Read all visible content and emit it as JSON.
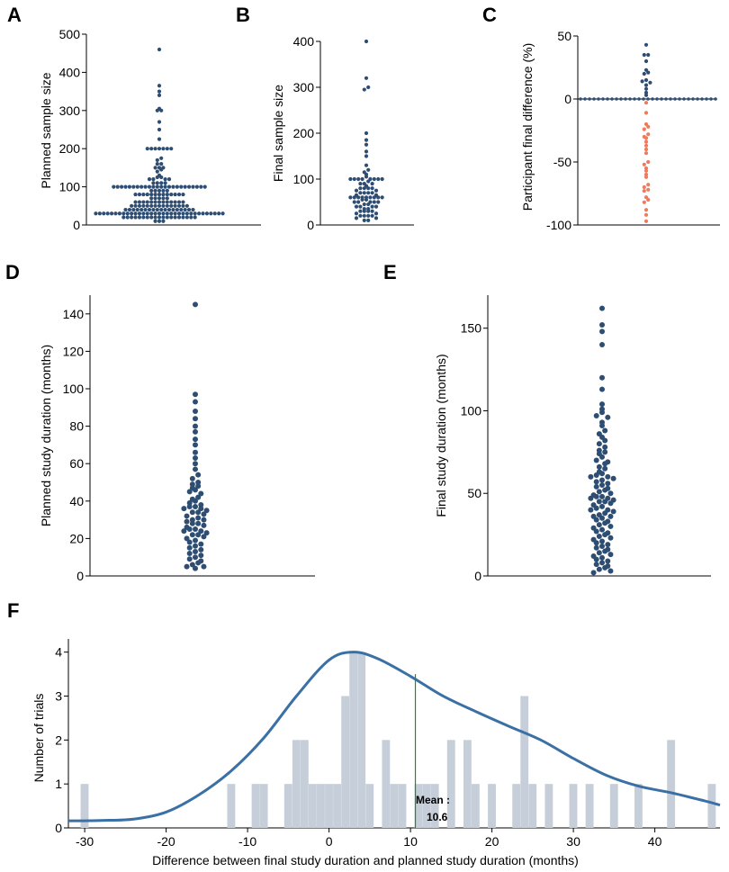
{
  "colors": {
    "dot": "#2e4d72",
    "neg_dot": "#f07a5c",
    "bar": "#c6cfd9",
    "curve": "#3a70a4",
    "mean_line": "#1e8f1e",
    "axis": "#000000"
  },
  "chart_data": [
    {
      "panel": "A",
      "type": "scatter",
      "ylabel": "Planned sample size",
      "ylim": [
        0,
        500
      ],
      "yticks": [
        0,
        100,
        200,
        300,
        400,
        500
      ],
      "values": [
        460,
        365,
        350,
        340,
        305,
        300,
        300,
        270,
        250,
        225,
        200,
        200,
        200,
        200,
        200,
        200,
        200,
        175,
        170,
        160,
        160,
        150,
        150,
        150,
        145,
        140,
        130,
        125,
        125,
        120,
        120,
        120,
        120,
        110,
        110,
        110,
        110,
        100,
        100,
        100,
        100,
        100,
        100,
        100,
        100,
        100,
        100,
        100,
        100,
        100,
        100,
        100,
        100,
        100,
        100,
        100,
        100,
        100,
        100,
        100,
        100,
        90,
        90,
        90,
        90,
        90,
        80,
        80,
        80,
        80,
        80,
        80,
        80,
        80,
        80,
        80,
        80,
        80,
        80,
        70,
        70,
        70,
        70,
        70,
        60,
        60,
        60,
        60,
        60,
        60,
        60,
        60,
        60,
        60,
        60,
        60,
        60,
        50,
        50,
        50,
        50,
        50,
        50,
        50,
        50,
        50,
        50,
        50,
        50,
        50,
        50,
        50,
        40,
        40,
        40,
        40,
        40,
        40,
        40,
        40,
        40,
        40,
        40,
        40,
        40,
        40,
        40,
        40,
        40,
        40,
        30,
        30,
        30,
        30,
        30,
        30,
        30,
        30,
        30,
        30,
        30,
        30,
        30,
        30,
        30,
        30,
        30,
        30,
        30,
        30,
        30,
        30,
        30,
        30,
        30,
        30,
        30,
        30,
        30,
        30,
        30,
        30,
        30,
        20,
        20,
        20,
        20,
        20,
        20,
        20,
        20,
        20,
        20,
        20,
        20,
        20,
        20,
        20,
        20,
        20,
        20,
        20,
        10,
        10,
        10
      ]
    },
    {
      "panel": "B",
      "type": "scatter",
      "ylabel": "Final sample size",
      "ylim": [
        0,
        400
      ],
      "yticks": [
        0,
        100,
        200,
        300,
        400
      ],
      "values": [
        400,
        320,
        300,
        295,
        200,
        185,
        175,
        160,
        150,
        130,
        120,
        115,
        110,
        105,
        100,
        100,
        100,
        100,
        100,
        100,
        100,
        100,
        95,
        90,
        90,
        90,
        85,
        80,
        80,
        80,
        80,
        75,
        75,
        70,
        70,
        70,
        70,
        65,
        65,
        60,
        60,
        60,
        60,
        60,
        60,
        60,
        60,
        60,
        55,
        55,
        50,
        50,
        50,
        50,
        50,
        45,
        45,
        40,
        40,
        40,
        40,
        35,
        35,
        30,
        30,
        30,
        30,
        25,
        25,
        20,
        20,
        20,
        20,
        15,
        15,
        10,
        10
      ]
    },
    {
      "panel": "C",
      "type": "scatter",
      "ylabel": "Participant final difference (%)",
      "ylim": [
        -100,
        50
      ],
      "yticks": [
        -100,
        -50,
        0,
        50
      ],
      "zero_row_count": 31,
      "values": [
        43,
        35,
        35,
        30,
        23,
        21,
        20,
        15,
        14,
        13,
        11,
        8,
        5,
        3,
        -3,
        -11,
        -20,
        -22,
        -24,
        -28,
        -30,
        -31,
        -34,
        -37,
        -40,
        -43,
        -50,
        -52,
        -55,
        -57,
        -60,
        -62,
        -68,
        -70,
        -72,
        -73,
        -78,
        -80,
        -82,
        -88,
        -92,
        -97
      ]
    },
    {
      "panel": "D",
      "type": "scatter",
      "ylabel": "Planned study duration (months)",
      "ylim": [
        0,
        150
      ],
      "yticks": [
        0,
        20,
        40,
        60,
        80,
        100,
        120,
        140
      ],
      "values": [
        145,
        97,
        93,
        88,
        84,
        80,
        77,
        73,
        70,
        66,
        63,
        60,
        57,
        54,
        52,
        50,
        49,
        48,
        47,
        46,
        45,
        44,
        42,
        41,
        40,
        39,
        38,
        37,
        37,
        36,
        36,
        35,
        34,
        34,
        33,
        32,
        31,
        30,
        30,
        29,
        28,
        28,
        27,
        26,
        25,
        25,
        24,
        24,
        23,
        22,
        22,
        21,
        20,
        19,
        18,
        17,
        16,
        15,
        14,
        13,
        12,
        11,
        10,
        9,
        8,
        7,
        6,
        5,
        5,
        4
      ]
    },
    {
      "panel": "E",
      "type": "scatter",
      "ylabel": "Final study duration (months)",
      "ylim": [
        0,
        170
      ],
      "yticks": [
        0,
        50,
        100,
        150
      ],
      "values": [
        162,
        152,
        148,
        140,
        120,
        113,
        104,
        101,
        99,
        97,
        96,
        93,
        91,
        88,
        86,
        84,
        82,
        80,
        78,
        76,
        75,
        74,
        72,
        70,
        69,
        68,
        66,
        65,
        63,
        62,
        61,
        60,
        60,
        59,
        58,
        57,
        56,
        55,
        54,
        53,
        52,
        51,
        50,
        49,
        48,
        48,
        47,
        47,
        46,
        45,
        45,
        44,
        43,
        42,
        41,
        40,
        40,
        39,
        38,
        37,
        36,
        36,
        35,
        34,
        33,
        32,
        31,
        30,
        29,
        28,
        27,
        26,
        25,
        24,
        23,
        22,
        21,
        20,
        19,
        18,
        17,
        16,
        15,
        14,
        13,
        12,
        11,
        10,
        9,
        8,
        7,
        6,
        5,
        4,
        3,
        2
      ]
    },
    {
      "panel": "F",
      "type": "bar",
      "xlabel": "Difference between final study duration and planned study duration (months)",
      "ylabel": "Number of trials",
      "xlim": [
        -32,
        48
      ],
      "ylim": [
        0,
        4.3
      ],
      "xticks": [
        -30,
        -20,
        -10,
        0,
        10,
        20,
        30,
        40
      ],
      "yticks": [
        0,
        1,
        2,
        3,
        4
      ],
      "bars": [
        [
          -30,
          1
        ],
        [
          -12,
          1
        ],
        [
          -9,
          1
        ],
        [
          -8,
          1
        ],
        [
          -5,
          1
        ],
        [
          -4,
          2
        ],
        [
          -3,
          2
        ],
        [
          -2,
          1
        ],
        [
          -1,
          1
        ],
        [
          0,
          1
        ],
        [
          1,
          1
        ],
        [
          2,
          3
        ],
        [
          3,
          4
        ],
        [
          4,
          4
        ],
        [
          5,
          1
        ],
        [
          7,
          2
        ],
        [
          8,
          1
        ],
        [
          9,
          1
        ],
        [
          11,
          1
        ],
        [
          12,
          1
        ],
        [
          13,
          1
        ],
        [
          15,
          2
        ],
        [
          17,
          2
        ],
        [
          18,
          1
        ],
        [
          20,
          1
        ],
        [
          23,
          1
        ],
        [
          24,
          3
        ],
        [
          25,
          1
        ],
        [
          27,
          1
        ],
        [
          30,
          1
        ],
        [
          32,
          1
        ],
        [
          35,
          1
        ],
        [
          38,
          1
        ],
        [
          42,
          2
        ],
        [
          47,
          1
        ]
      ],
      "density_curve": [
        [
          -32,
          0.16
        ],
        [
          -28,
          0.17
        ],
        [
          -24,
          0.2
        ],
        [
          -20,
          0.36
        ],
        [
          -16,
          0.75
        ],
        [
          -12,
          1.3
        ],
        [
          -8,
          2.05
        ],
        [
          -4,
          3.0
        ],
        [
          0,
          3.82
        ],
        [
          3,
          4.0
        ],
        [
          6,
          3.85
        ],
        [
          10,
          3.45
        ],
        [
          14,
          3.0
        ],
        [
          18,
          2.65
        ],
        [
          22,
          2.32
        ],
        [
          26,
          2.0
        ],
        [
          30,
          1.58
        ],
        [
          34,
          1.2
        ],
        [
          38,
          0.95
        ],
        [
          42,
          0.8
        ],
        [
          46,
          0.62
        ],
        [
          48,
          0.52
        ]
      ],
      "mean": 10.6,
      "mean_label_top": "Mean :",
      "mean_label_value": "10.6"
    }
  ]
}
